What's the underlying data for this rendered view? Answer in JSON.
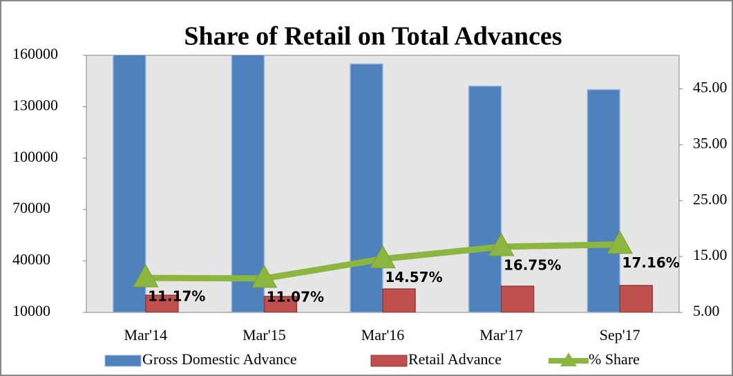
{
  "chart_data": {
    "type": "bar",
    "title": "Share of Retail on Total Advances",
    "categories": [
      "Mar'14",
      "Mar'15",
      "Mar'16",
      "Mar'17",
      "Sep'17"
    ],
    "series": [
      {
        "name": "Gross Domestic Advance",
        "type": "bar",
        "color": "#4f81bd",
        "values": [
          165000,
          165000,
          155000,
          142000,
          140000
        ]
      },
      {
        "name": "Retail Advance",
        "type": "bar",
        "color": "#c0504d",
        "values": [
          20000,
          19300,
          23700,
          25300,
          25700
        ]
      },
      {
        "name": "% Share",
        "type": "line",
        "axis": "y2",
        "color": "#8db641",
        "values": [
          11.17,
          11.07,
          14.57,
          16.75,
          17.16
        ],
        "value_labels": [
          "11.17%",
          "11.07%",
          "14.57%",
          "16.75%",
          "17.16%"
        ]
      }
    ],
    "ylim": [
      10000,
      160000
    ],
    "yticks": [
      10000,
      40000,
      70000,
      100000,
      130000,
      160000
    ],
    "y2lim": [
      5,
      51
    ],
    "y2ticks": [
      {
        "value": 5,
        "label": "5.00"
      },
      {
        "value": 15,
        "label": "15.00"
      },
      {
        "value": 25,
        "label": "25.00"
      },
      {
        "value": 35,
        "label": "35.00"
      },
      {
        "value": 45,
        "label": "45.00"
      }
    ],
    "legend": "bottom"
  }
}
